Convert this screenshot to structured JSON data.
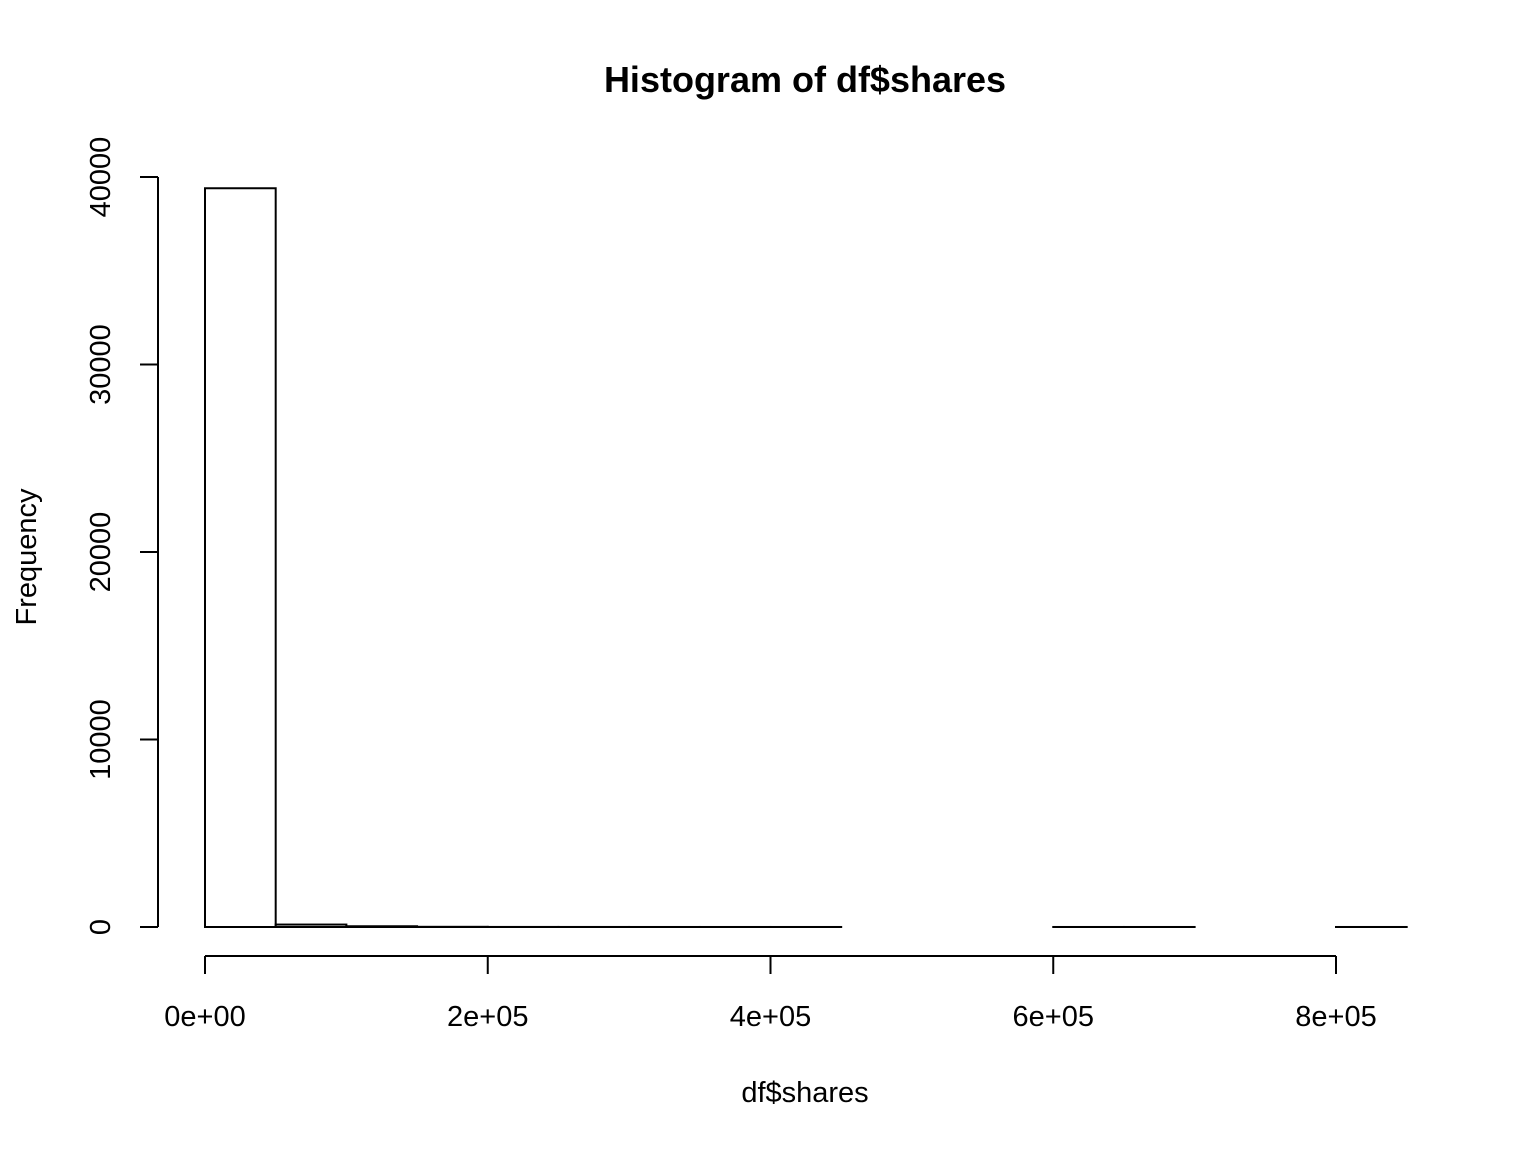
{
  "chart_data": {
    "type": "bar",
    "title": "Histogram of df$shares",
    "xlabel": "df$shares",
    "ylabel": "Frequency",
    "bin_edges": [
      0,
      50000,
      100000,
      150000,
      200000,
      250000,
      300000,
      350000,
      400000,
      450000,
      500000,
      550000,
      600000,
      650000,
      700000,
      750000,
      800000,
      850000
    ],
    "values": [
      39400,
      130,
      40,
      10,
      3,
      2,
      1,
      1,
      1,
      0,
      0,
      0,
      1,
      1,
      0,
      0,
      1
    ],
    "xlim": [
      0,
      850000
    ],
    "ylim": [
      0,
      40000
    ],
    "x_ticks": [
      0,
      200000,
      400000,
      600000,
      800000
    ],
    "x_tick_labels": [
      "0e+00",
      "2e+05",
      "4e+05",
      "6e+05",
      "8e+05"
    ],
    "y_ticks": [
      0,
      10000,
      20000,
      30000,
      40000
    ],
    "y_tick_labels": [
      "0",
      "10000",
      "20000",
      "30000",
      "40000"
    ],
    "grid": false,
    "legend": "none",
    "colors": {
      "bar_fill": "#ffffff",
      "bar_stroke": "#000000"
    }
  }
}
